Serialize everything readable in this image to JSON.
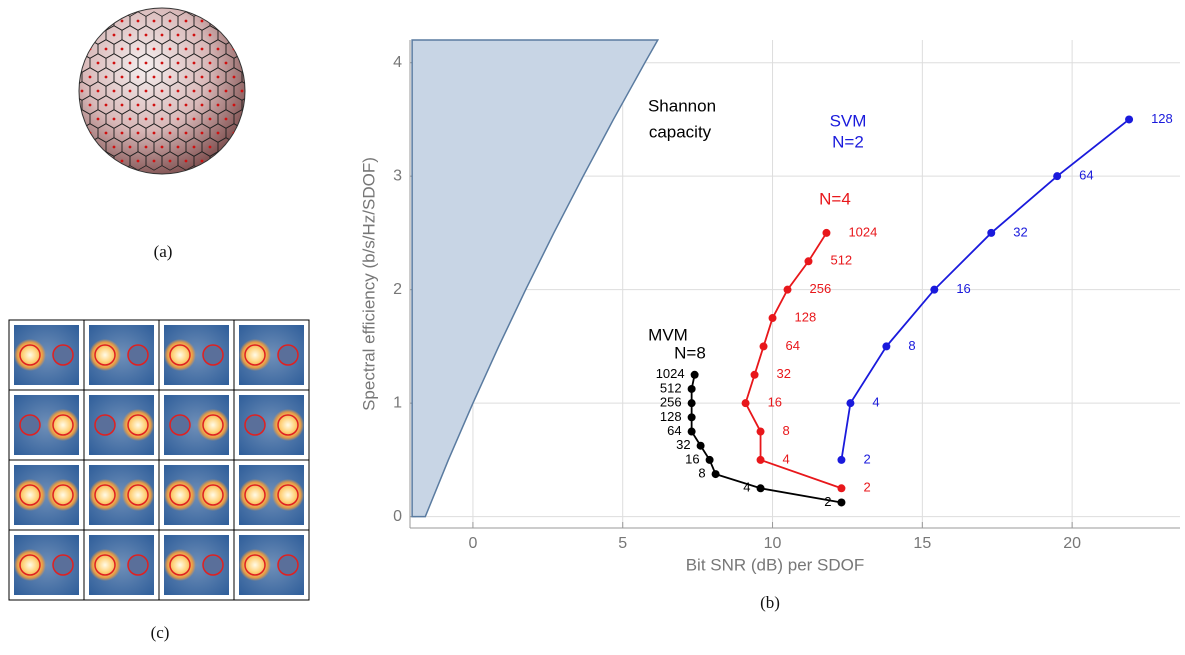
{
  "captions": {
    "a": "(a)",
    "b": "(b)",
    "c": "(c)"
  },
  "chart_data": {
    "type": "line",
    "xlabel": "Bit SNR (dB) per SDOF",
    "ylabel": "Spectral efficiency (b/s/Hz/SDOF)",
    "xlim": [
      -2.1,
      23.6
    ],
    "ylim": [
      -0.1,
      4.2
    ],
    "xticks": [
      0,
      5,
      10,
      15,
      20
    ],
    "yticks": [
      0,
      1,
      2,
      3,
      4
    ],
    "grid": true,
    "shannon": {
      "color": "#c8d5e5",
      "edge": "#5a7ba0",
      "x": [
        -2.03,
        -1.59,
        -0.82,
        0,
        0.86,
        1.76,
        2.7,
        3.68,
        4.69,
        5.74,
        6.17,
        -2.03
      ],
      "values": [
        0,
        0,
        0.5,
        1,
        1.5,
        2,
        2.5,
        3,
        3.5,
        4,
        4.2,
        4.2
      ]
    },
    "annotations": [
      {
        "text": "Shannon",
        "color": "#000000"
      },
      {
        "text": "capacity",
        "color": "#000000"
      },
      {
        "text": "SVM",
        "color": "#1a1adc"
      },
      {
        "text": "N=2",
        "color": "#1a1adc"
      },
      {
        "text": "N=4",
        "color": "#e8171b"
      },
      {
        "text": "MVM",
        "color": "#000000"
      },
      {
        "text": "N=8",
        "color": "#000000"
      }
    ],
    "series": [
      {
        "color": "#1a1adc",
        "x": [
          12.3,
          12.6,
          13.8,
          15.4,
          17.3,
          19.5,
          21.9
        ],
        "values": [
          0.5,
          1,
          1.5,
          2,
          2.5,
          3,
          3.5
        ],
        "point_labels": [
          2,
          4,
          8,
          16,
          32,
          64,
          128
        ]
      },
      {
        "color": "#e8171b",
        "x": [
          12.3,
          9.6,
          9.6,
          9.1,
          9.4,
          9.7,
          10.0,
          10.5,
          11.2,
          11.8
        ],
        "values": [
          0.25,
          0.5,
          0.75,
          1,
          1.25,
          1.5,
          1.75,
          2,
          2.25,
          2.5
        ],
        "point_labels": [
          2,
          4,
          8,
          16,
          32,
          64,
          128,
          256,
          512,
          1024
        ]
      },
      {
        "color": "#000000",
        "x": [
          12.3,
          9.6,
          8.1,
          7.9,
          7.6,
          7.3,
          7.3,
          7.3,
          7.3,
          7.4
        ],
        "values": [
          0.125,
          0.25,
          0.375,
          0.5,
          0.625,
          0.75,
          0.875,
          1,
          1.125,
          1.25
        ],
        "point_labels": [
          2,
          4,
          8,
          16,
          32,
          64,
          128,
          256,
          512,
          1024
        ]
      }
    ]
  }
}
